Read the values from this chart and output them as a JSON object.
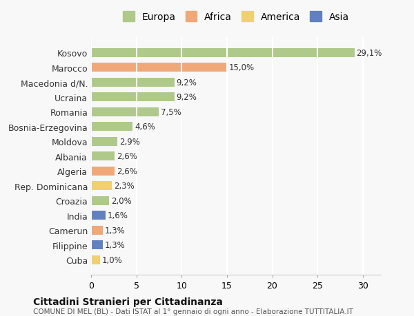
{
  "categories": [
    "Kosovo",
    "Marocco",
    "Macedonia d/N.",
    "Ucraina",
    "Romania",
    "Bosnia-Erzegovina",
    "Moldova",
    "Albania",
    "Algeria",
    "Rep. Dominicana",
    "Croazia",
    "India",
    "Camerun",
    "Filippine",
    "Cuba"
  ],
  "values": [
    29.1,
    15.0,
    9.2,
    9.2,
    7.5,
    4.6,
    2.9,
    2.6,
    2.6,
    2.3,
    2.0,
    1.6,
    1.3,
    1.3,
    1.0
  ],
  "labels": [
    "29,1%",
    "15,0%",
    "9,2%",
    "9,2%",
    "7,5%",
    "4,6%",
    "2,9%",
    "2,6%",
    "2,6%",
    "2,3%",
    "2,0%",
    "1,6%",
    "1,3%",
    "1,3%",
    "1,0%"
  ],
  "continents": [
    "Europa",
    "Africa",
    "Europa",
    "Europa",
    "Europa",
    "Europa",
    "Europa",
    "Europa",
    "Africa",
    "America",
    "Europa",
    "Asia",
    "Africa",
    "Asia",
    "America"
  ],
  "colors": {
    "Europa": "#aec98a",
    "Africa": "#f0a878",
    "America": "#f0d070",
    "Asia": "#6080c0"
  },
  "legend_order": [
    "Europa",
    "Africa",
    "America",
    "Asia"
  ],
  "xlim": [
    0,
    32
  ],
  "xticks": [
    0,
    5,
    10,
    15,
    20,
    25,
    30
  ],
  "title": "Cittadini Stranieri per Cittadinanza",
  "subtitle": "COMUNE DI MEL (BL) - Dati ISTAT al 1° gennaio di ogni anno - Elaborazione TUTTITALIA.IT",
  "background_color": "#f8f8f8",
  "grid_color": "#ffffff",
  "bar_height": 0.6
}
